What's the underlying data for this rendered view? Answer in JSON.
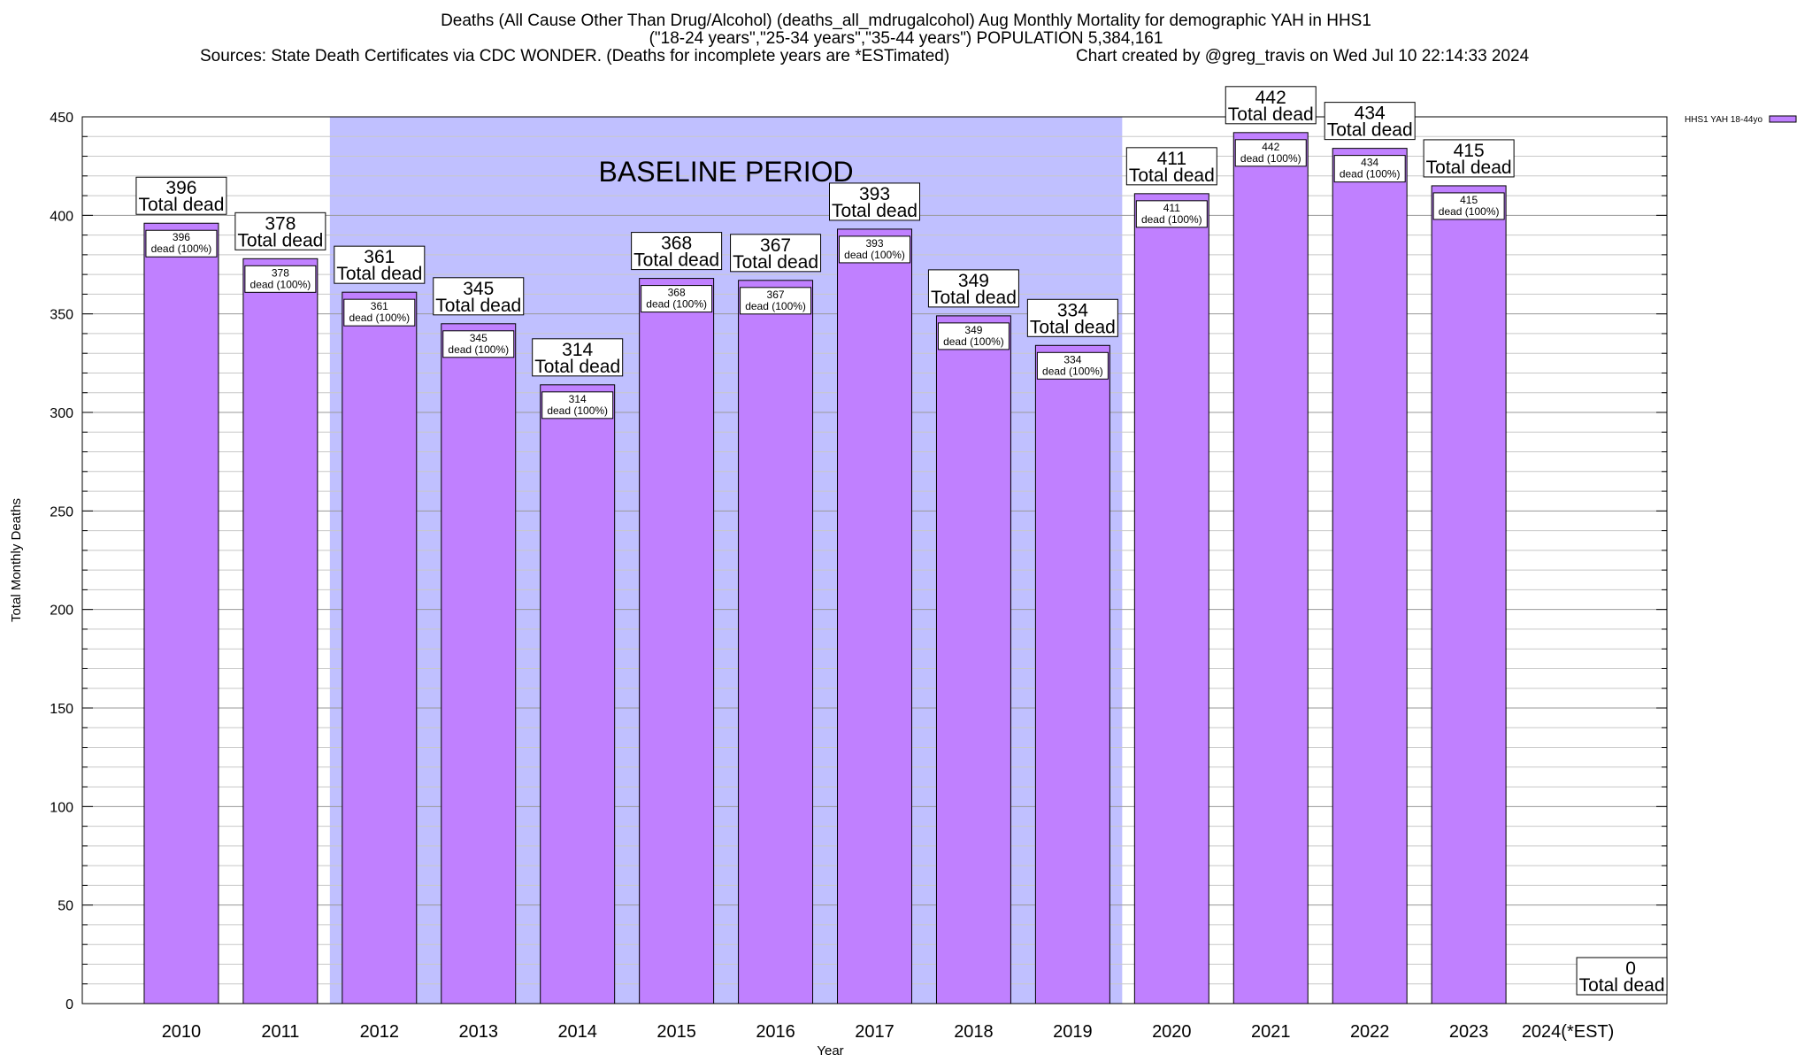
{
  "chart_data": {
    "type": "bar",
    "title": "Deaths (All Cause Other Than Drug/Alcohol) (deaths_all_mdrugalcohol) Aug Monthly Mortality for demographic YAH in HHS1",
    "subtitle": "(\"18-24 years\",\"25-34 years\",\"35-44 years\") POPULATION 5,384,161",
    "source": "Sources: State Death Certificates via CDC WONDER. (Deaths for incomplete years are *ESTimated)",
    "credit": "Chart created by @greg_travis on Wed Jul 10 22:14:33 2024",
    "xlabel": "Year",
    "ylabel": "Total Monthly Deaths",
    "ylim": [
      0,
      450
    ],
    "yticks": [
      0,
      50,
      100,
      150,
      200,
      250,
      300,
      350,
      400,
      450
    ],
    "yticks_minor_step": 10,
    "grid": true,
    "legend_position": "top-right",
    "categories": [
      "2010",
      "2011",
      "2012",
      "2013",
      "2014",
      "2015",
      "2016",
      "2017",
      "2018",
      "2019",
      "2020",
      "2021",
      "2022",
      "2023",
      "2024(*EST)"
    ],
    "series": [
      {
        "name": "HHS1 YAH 18-44yo",
        "color": "#c080ff",
        "values": [
          396,
          378,
          361,
          345,
          314,
          368,
          367,
          393,
          349,
          334,
          411,
          442,
          434,
          415,
          0
        ]
      }
    ],
    "total_label": "Total dead",
    "bar_label_suffix": "dead (100%)",
    "baseline": {
      "label": "BASELINE PERIOD",
      "from": "2012",
      "to": "2019",
      "color": "#c0c0ff"
    }
  }
}
